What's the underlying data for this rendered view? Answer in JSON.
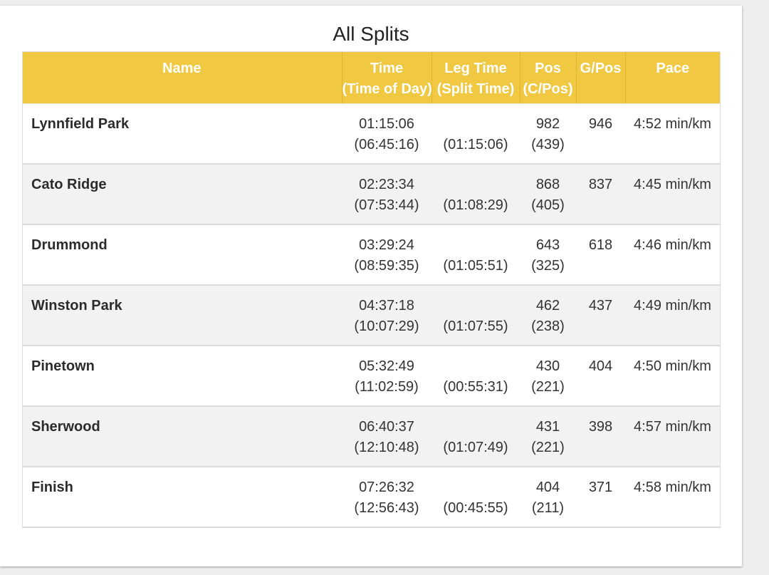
{
  "title": "All Splits",
  "colors": {
    "header_bg": "#f0c841",
    "header_text": "#ffffff",
    "row_alt": "#f2f2f2"
  },
  "columns": {
    "name": "Name",
    "time_1": "Time",
    "time_2": "(Time of Day)",
    "leg_1": "Leg Time",
    "leg_2": "(Split Time)",
    "pos_1": "Pos",
    "pos_2": "(C/Pos)",
    "gpos": "G/Pos",
    "pace": "Pace"
  },
  "rows": [
    {
      "name": "Lynnfield Park",
      "time": "01:15:06",
      "tod": "(06:45:16)",
      "leg": "",
      "split": "(01:15:06)",
      "pos": "982",
      "cpos": "(439)",
      "gpos": "946",
      "pace": "4:52 min/km"
    },
    {
      "name": "Cato Ridge",
      "time": "02:23:34",
      "tod": "(07:53:44)",
      "leg": "",
      "split": "(01:08:29)",
      "pos": "868",
      "cpos": "(405)",
      "gpos": "837",
      "pace": "4:45 min/km"
    },
    {
      "name": "Drummond",
      "time": "03:29:24",
      "tod": "(08:59:35)",
      "leg": "",
      "split": "(01:05:51)",
      "pos": "643",
      "cpos": "(325)",
      "gpos": "618",
      "pace": "4:46 min/km"
    },
    {
      "name": "Winston Park",
      "time": "04:37:18",
      "tod": "(10:07:29)",
      "leg": "",
      "split": "(01:07:55)",
      "pos": "462",
      "cpos": "(238)",
      "gpos": "437",
      "pace": "4:49 min/km"
    },
    {
      "name": "Pinetown",
      "time": "05:32:49",
      "tod": "(11:02:59)",
      "leg": "",
      "split": "(00:55:31)",
      "pos": "430",
      "cpos": "(221)",
      "gpos": "404",
      "pace": "4:50 min/km"
    },
    {
      "name": "Sherwood",
      "time": "06:40:37",
      "tod": "(12:10:48)",
      "leg": "",
      "split": "(01:07:49)",
      "pos": "431",
      "cpos": "(221)",
      "gpos": "398",
      "pace": "4:57 min/km"
    },
    {
      "name": "Finish",
      "time": "07:26:32",
      "tod": "(12:56:43)",
      "leg": "",
      "split": "(00:45:55)",
      "pos": "404",
      "cpos": "(211)",
      "gpos": "371",
      "pace": "4:58 min/km"
    }
  ]
}
